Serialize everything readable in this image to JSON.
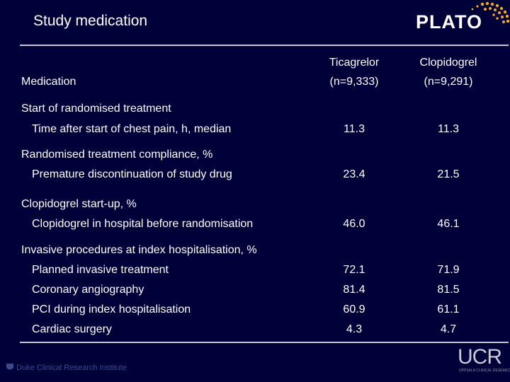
{
  "slide": {
    "title": "Study medication",
    "logo": "PLATO",
    "footer_left_institution": "Duke Clinical Research Institute",
    "footer_right_logo": "UCR",
    "footer_right_sub": "UPPSALA CLINICAL RESEARCH CENTER"
  },
  "table": {
    "header": {
      "label": "Medication",
      "col1_name": "Ticagrelor",
      "col1_n": "(n=9,333)",
      "col2_name": "Clopidogrel",
      "col2_n": "(n=9,291)"
    },
    "sections": [
      {
        "title": "Start of randomised treatment",
        "rows": [
          {
            "label": "Time after start of chest pain, h, median",
            "ticagrelor": "11.3",
            "clopidogrel": "11.3"
          }
        ]
      },
      {
        "title": "Randomised treatment compliance, %",
        "rows": [
          {
            "label": "Premature discontinuation of study drug",
            "ticagrelor": "23.4",
            "clopidogrel": "21.5"
          }
        ]
      },
      {
        "title": "Clopidogrel start-up, %",
        "rows": [
          {
            "label": "Clopidogrel in hospital before randomisation",
            "ticagrelor": "46.0",
            "clopidogrel": "46.1"
          }
        ]
      },
      {
        "title": "Invasive procedures at index hospitalisation, %",
        "rows": [
          {
            "label": "Planned invasive treatment",
            "ticagrelor": "72.1",
            "clopidogrel": "71.9"
          },
          {
            "label": "Coronary angiography",
            "ticagrelor": "81.4",
            "clopidogrel": "81.5"
          },
          {
            "label": "PCI during index hospitalisation",
            "ticagrelor": "60.9",
            "clopidogrel": "61.1"
          },
          {
            "label": "Cardiac surgery",
            "ticagrelor": "4.3",
            "clopidogrel": "4.7"
          }
        ]
      }
    ]
  },
  "colors": {
    "background": "#01013a",
    "text": "#ffffff",
    "rule": "#c8c8d0",
    "logo_dots": "#f5a623"
  }
}
